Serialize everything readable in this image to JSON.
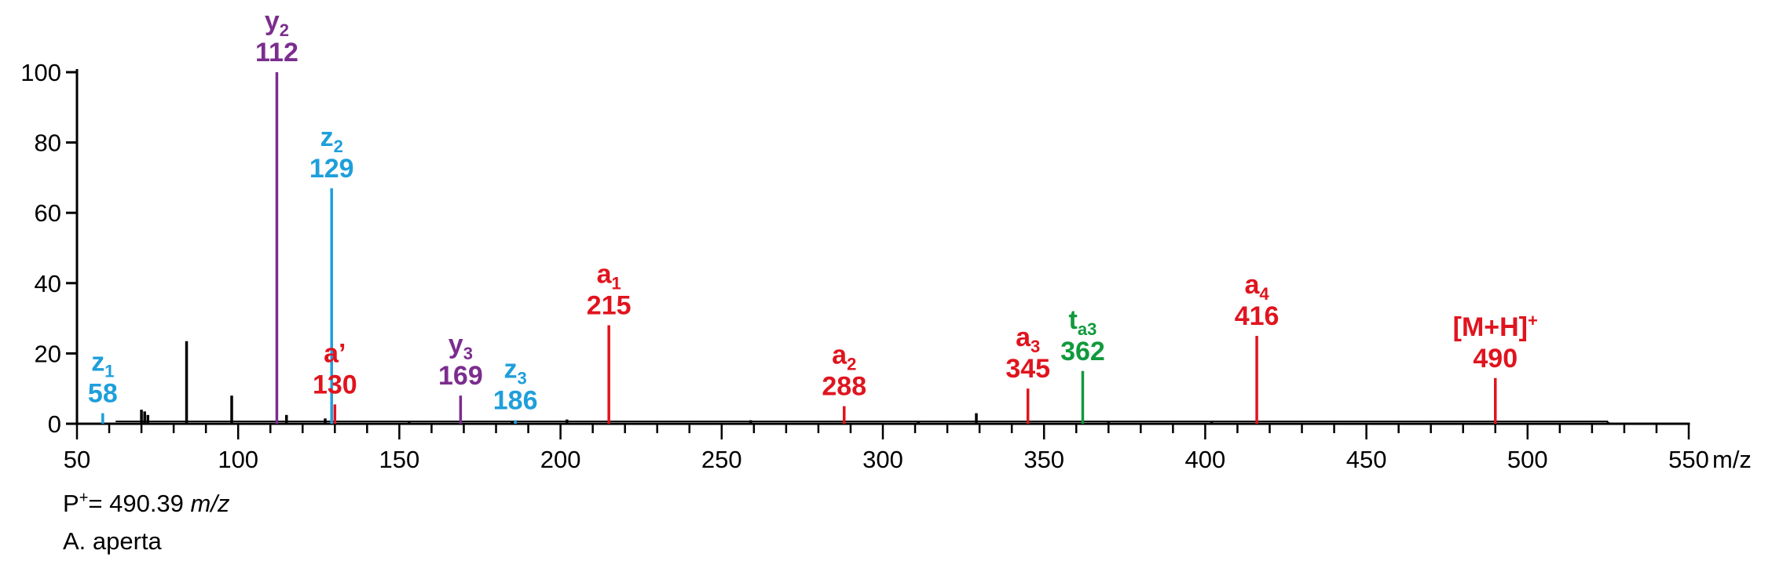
{
  "chart_data": {
    "type": "bar",
    "xlim": [
      50,
      550
    ],
    "ylim": [
      0,
      100
    ],
    "x_ticks": [
      50,
      100,
      150,
      200,
      250,
      300,
      350,
      400,
      450,
      500,
      550
    ],
    "y_ticks": [
      0,
      20,
      40,
      60,
      80,
      100
    ],
    "x_unit": "m/z",
    "ylabel": "",
    "xlabel": "",
    "grid": false,
    "colors": {
      "black": "#000000",
      "purple": "#7B2D8E",
      "blue": "#1E9FDB",
      "red": "#E0141E",
      "green": "#109A3C"
    },
    "labeled_peaks": [
      {
        "x": 58,
        "y": 3,
        "color": "blue",
        "ion": "z",
        "sub": "1",
        "mz": "58"
      },
      {
        "x": 112,
        "y": 100,
        "color": "purple",
        "ion": "y",
        "sub": "2",
        "mz": "112"
      },
      {
        "x": 129,
        "y": 67,
        "color": "blue",
        "ion": "z",
        "sub": "2",
        "mz": "129"
      },
      {
        "x": 130,
        "y": 5.5,
        "color": "red",
        "ion": "a’",
        "sub": "",
        "mz": "130"
      },
      {
        "x": 169,
        "y": 8,
        "color": "purple",
        "ion": "y",
        "sub": "3",
        "mz": "169"
      },
      {
        "x": 186,
        "y": 1,
        "color": "blue",
        "ion": "z",
        "sub": "3",
        "mz": "186"
      },
      {
        "x": 215,
        "y": 28,
        "color": "red",
        "ion": "a",
        "sub": "1",
        "mz": "215"
      },
      {
        "x": 288,
        "y": 5,
        "color": "red",
        "ion": "a",
        "sub": "2",
        "mz": "288"
      },
      {
        "x": 345,
        "y": 10,
        "color": "red",
        "ion": "a",
        "sub": "3",
        "mz": "345"
      },
      {
        "x": 362,
        "y": 15,
        "color": "green",
        "ion": "t",
        "sub": "a3",
        "mz": "362"
      },
      {
        "x": 416,
        "y": 25,
        "color": "red",
        "ion": "a",
        "sub": "4",
        "mz": "416"
      },
      {
        "x": 490,
        "y": 13,
        "color": "red",
        "ion": "[M+H]",
        "sup": "+",
        "sub": "",
        "mz": "490"
      }
    ],
    "unlabeled_peaks": [
      {
        "x": 70,
        "y": 4
      },
      {
        "x": 71,
        "y": 3.5
      },
      {
        "x": 72,
        "y": 2.5
      },
      {
        "x": 84,
        "y": 23.5
      },
      {
        "x": 98,
        "y": 8
      },
      {
        "x": 115,
        "y": 2.5
      },
      {
        "x": 127,
        "y": 1.5
      },
      {
        "x": 153,
        "y": 0.8
      },
      {
        "x": 185,
        "y": 0.8
      },
      {
        "x": 202,
        "y": 1.2
      },
      {
        "x": 259,
        "y": 1
      },
      {
        "x": 311,
        "y": 0.8
      },
      {
        "x": 329,
        "y": 3
      },
      {
        "x": 370,
        "y": 0.8
      },
      {
        "x": 402,
        "y": 0.8
      },
      {
        "x": 525,
        "y": 0.5
      }
    ]
  },
  "footer": {
    "precursor_prefix": "P",
    "precursor_sup": "+",
    "precursor_value": "= 490.39 ",
    "precursor_unit": "m/z",
    "species": "A. aperta"
  }
}
